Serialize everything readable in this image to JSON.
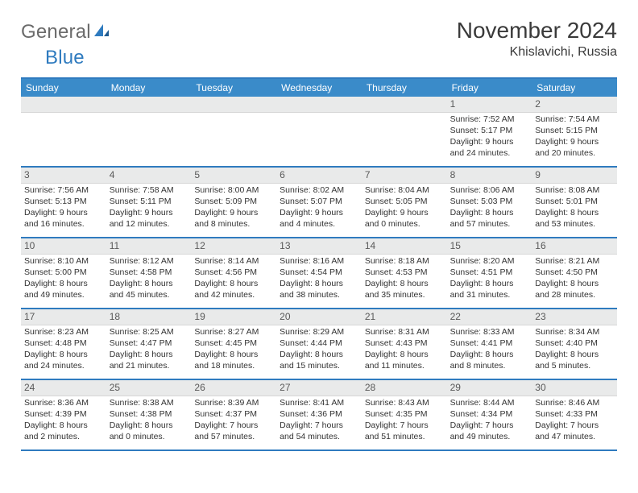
{
  "logo": {
    "word1": "General",
    "word2": "Blue"
  },
  "title": "November 2024",
  "location": "Khislavichi, Russia",
  "colors": {
    "header_bar": "#3a8bc9",
    "rule": "#2f7bbf",
    "daynum_bg": "#e9eaea",
    "text": "#333333",
    "title_text": "#3a3a3a",
    "logo_gray": "#6b6b6b"
  },
  "weekdays": [
    "Sunday",
    "Monday",
    "Tuesday",
    "Wednesday",
    "Thursday",
    "Friday",
    "Saturday"
  ],
  "weeks": [
    [
      null,
      null,
      null,
      null,
      null,
      {
        "n": "1",
        "sr": "Sunrise: 7:52 AM",
        "ss": "Sunset: 5:17 PM",
        "d1": "Daylight: 9 hours",
        "d2": "and 24 minutes."
      },
      {
        "n": "2",
        "sr": "Sunrise: 7:54 AM",
        "ss": "Sunset: 5:15 PM",
        "d1": "Daylight: 9 hours",
        "d2": "and 20 minutes."
      }
    ],
    [
      {
        "n": "3",
        "sr": "Sunrise: 7:56 AM",
        "ss": "Sunset: 5:13 PM",
        "d1": "Daylight: 9 hours",
        "d2": "and 16 minutes."
      },
      {
        "n": "4",
        "sr": "Sunrise: 7:58 AM",
        "ss": "Sunset: 5:11 PM",
        "d1": "Daylight: 9 hours",
        "d2": "and 12 minutes."
      },
      {
        "n": "5",
        "sr": "Sunrise: 8:00 AM",
        "ss": "Sunset: 5:09 PM",
        "d1": "Daylight: 9 hours",
        "d2": "and 8 minutes."
      },
      {
        "n": "6",
        "sr": "Sunrise: 8:02 AM",
        "ss": "Sunset: 5:07 PM",
        "d1": "Daylight: 9 hours",
        "d2": "and 4 minutes."
      },
      {
        "n": "7",
        "sr": "Sunrise: 8:04 AM",
        "ss": "Sunset: 5:05 PM",
        "d1": "Daylight: 9 hours",
        "d2": "and 0 minutes."
      },
      {
        "n": "8",
        "sr": "Sunrise: 8:06 AM",
        "ss": "Sunset: 5:03 PM",
        "d1": "Daylight: 8 hours",
        "d2": "and 57 minutes."
      },
      {
        "n": "9",
        "sr": "Sunrise: 8:08 AM",
        "ss": "Sunset: 5:01 PM",
        "d1": "Daylight: 8 hours",
        "d2": "and 53 minutes."
      }
    ],
    [
      {
        "n": "10",
        "sr": "Sunrise: 8:10 AM",
        "ss": "Sunset: 5:00 PM",
        "d1": "Daylight: 8 hours",
        "d2": "and 49 minutes."
      },
      {
        "n": "11",
        "sr": "Sunrise: 8:12 AM",
        "ss": "Sunset: 4:58 PM",
        "d1": "Daylight: 8 hours",
        "d2": "and 45 minutes."
      },
      {
        "n": "12",
        "sr": "Sunrise: 8:14 AM",
        "ss": "Sunset: 4:56 PM",
        "d1": "Daylight: 8 hours",
        "d2": "and 42 minutes."
      },
      {
        "n": "13",
        "sr": "Sunrise: 8:16 AM",
        "ss": "Sunset: 4:54 PM",
        "d1": "Daylight: 8 hours",
        "d2": "and 38 minutes."
      },
      {
        "n": "14",
        "sr": "Sunrise: 8:18 AM",
        "ss": "Sunset: 4:53 PM",
        "d1": "Daylight: 8 hours",
        "d2": "and 35 minutes."
      },
      {
        "n": "15",
        "sr": "Sunrise: 8:20 AM",
        "ss": "Sunset: 4:51 PM",
        "d1": "Daylight: 8 hours",
        "d2": "and 31 minutes."
      },
      {
        "n": "16",
        "sr": "Sunrise: 8:21 AM",
        "ss": "Sunset: 4:50 PM",
        "d1": "Daylight: 8 hours",
        "d2": "and 28 minutes."
      }
    ],
    [
      {
        "n": "17",
        "sr": "Sunrise: 8:23 AM",
        "ss": "Sunset: 4:48 PM",
        "d1": "Daylight: 8 hours",
        "d2": "and 24 minutes."
      },
      {
        "n": "18",
        "sr": "Sunrise: 8:25 AM",
        "ss": "Sunset: 4:47 PM",
        "d1": "Daylight: 8 hours",
        "d2": "and 21 minutes."
      },
      {
        "n": "19",
        "sr": "Sunrise: 8:27 AM",
        "ss": "Sunset: 4:45 PM",
        "d1": "Daylight: 8 hours",
        "d2": "and 18 minutes."
      },
      {
        "n": "20",
        "sr": "Sunrise: 8:29 AM",
        "ss": "Sunset: 4:44 PM",
        "d1": "Daylight: 8 hours",
        "d2": "and 15 minutes."
      },
      {
        "n": "21",
        "sr": "Sunrise: 8:31 AM",
        "ss": "Sunset: 4:43 PM",
        "d1": "Daylight: 8 hours",
        "d2": "and 11 minutes."
      },
      {
        "n": "22",
        "sr": "Sunrise: 8:33 AM",
        "ss": "Sunset: 4:41 PM",
        "d1": "Daylight: 8 hours",
        "d2": "and 8 minutes."
      },
      {
        "n": "23",
        "sr": "Sunrise: 8:34 AM",
        "ss": "Sunset: 4:40 PM",
        "d1": "Daylight: 8 hours",
        "d2": "and 5 minutes."
      }
    ],
    [
      {
        "n": "24",
        "sr": "Sunrise: 8:36 AM",
        "ss": "Sunset: 4:39 PM",
        "d1": "Daylight: 8 hours",
        "d2": "and 2 minutes."
      },
      {
        "n": "25",
        "sr": "Sunrise: 8:38 AM",
        "ss": "Sunset: 4:38 PM",
        "d1": "Daylight: 8 hours",
        "d2": "and 0 minutes."
      },
      {
        "n": "26",
        "sr": "Sunrise: 8:39 AM",
        "ss": "Sunset: 4:37 PM",
        "d1": "Daylight: 7 hours",
        "d2": "and 57 minutes."
      },
      {
        "n": "27",
        "sr": "Sunrise: 8:41 AM",
        "ss": "Sunset: 4:36 PM",
        "d1": "Daylight: 7 hours",
        "d2": "and 54 minutes."
      },
      {
        "n": "28",
        "sr": "Sunrise: 8:43 AM",
        "ss": "Sunset: 4:35 PM",
        "d1": "Daylight: 7 hours",
        "d2": "and 51 minutes."
      },
      {
        "n": "29",
        "sr": "Sunrise: 8:44 AM",
        "ss": "Sunset: 4:34 PM",
        "d1": "Daylight: 7 hours",
        "d2": "and 49 minutes."
      },
      {
        "n": "30",
        "sr": "Sunrise: 8:46 AM",
        "ss": "Sunset: 4:33 PM",
        "d1": "Daylight: 7 hours",
        "d2": "and 47 minutes."
      }
    ]
  ]
}
